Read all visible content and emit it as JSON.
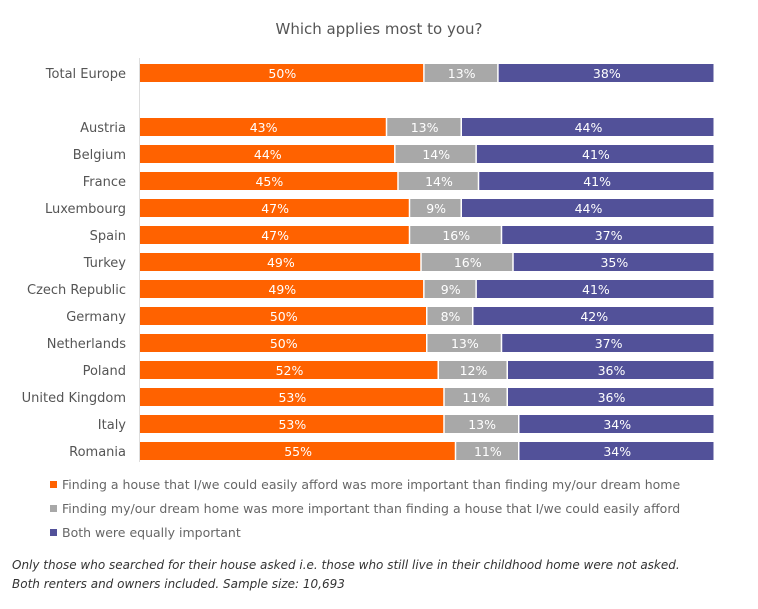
{
  "chart_data": {
    "type": "bar",
    "orientation": "horizontal-stacked-100",
    "title": "Which applies most to you?",
    "categories": [
      "Total Europe",
      "Austria",
      "Belgium",
      "France",
      "Luxembourg",
      "Spain",
      "Turkey",
      "Czech Republic",
      "Germany",
      "Netherlands",
      "Poland",
      "United Kingdom",
      "Italy",
      "Romania"
    ],
    "series": [
      {
        "name": "Finding a house that I/we could easily afford was more important than finding my/our dream home",
        "color": "#FF6200",
        "values": [
          50,
          43,
          44,
          45,
          47,
          47,
          49,
          49,
          50,
          50,
          52,
          53,
          53,
          55
        ]
      },
      {
        "name": "Finding my/our dream home was more important than finding a house that I/we could easily afford",
        "color": "#A8A8A8",
        "values": [
          13,
          13,
          14,
          14,
          9,
          16,
          16,
          9,
          8,
          13,
          12,
          11,
          13,
          11
        ]
      },
      {
        "name": "Both were equally important",
        "color": "#525199",
        "values": [
          38,
          44,
          41,
          41,
          44,
          37,
          35,
          41,
          42,
          37,
          36,
          36,
          34,
          34
        ]
      }
    ],
    "value_suffix": "%",
    "legend_position": "bottom-left",
    "grid": false
  },
  "notes": [
    "Only those who searched for their house asked i.e. those who still live in their childhood home were not asked.",
    "Both renters and owners included. Sample size: 10,693"
  ]
}
